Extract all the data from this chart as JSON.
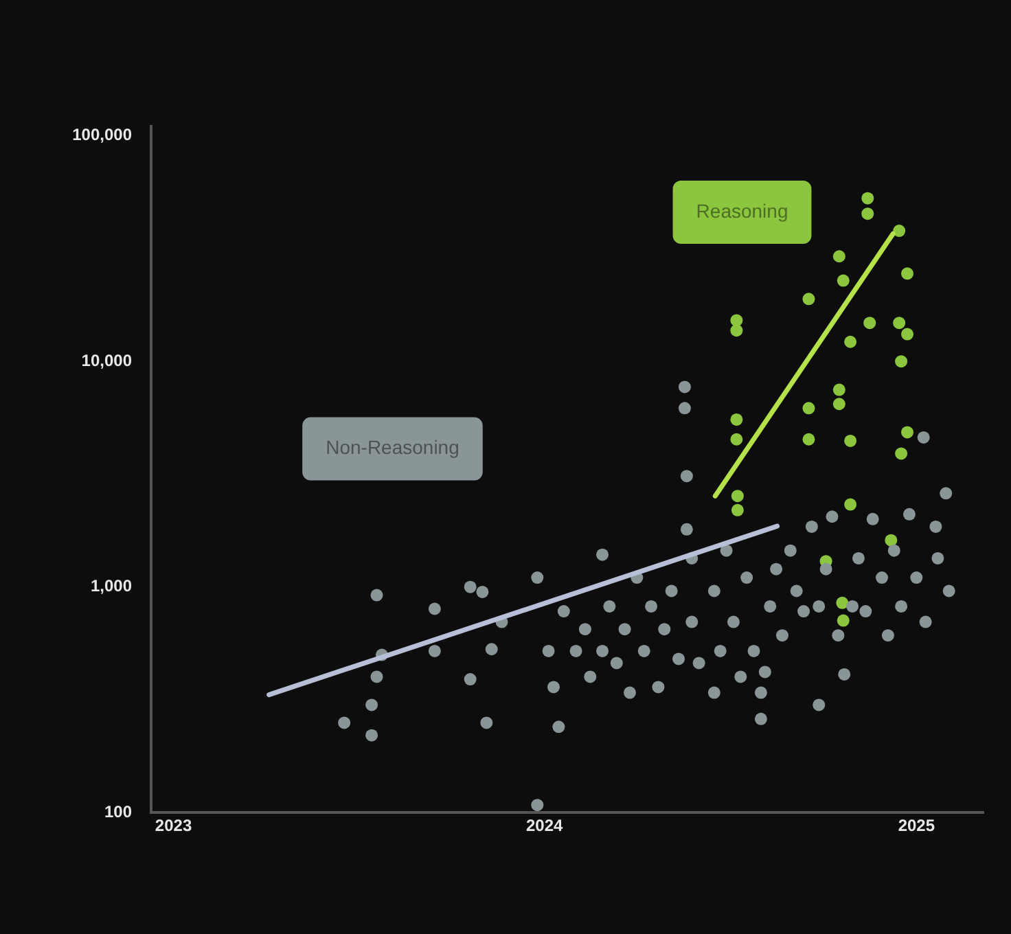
{
  "chart_data": {
    "type": "scatter",
    "log": "y",
    "grid": false,
    "legend": false,
    "marker": "circle",
    "xlim": [
      "2022-12-10",
      "2025-03-08"
    ],
    "xticks": [
      "2023",
      "2024",
      "2025"
    ],
    "ylim": [
      100,
      110000
    ],
    "yticks": [
      {
        "value": 100,
        "label": "100"
      },
      {
        "value": 1000,
        "label": "1,000"
      },
      {
        "value": 10000,
        "label": "10,000"
      },
      {
        "value": 100000,
        "label": "100,000"
      }
    ],
    "series": [
      {
        "name": "Non-Reasoning",
        "color": "#8a9598",
        "x": [
          "2023-06-18",
          "2023-07-15",
          "2023-07-15",
          "2023-07-20",
          "2023-07-20",
          "2023-07-25",
          "2023-09-15",
          "2023-09-15",
          "2023-10-20",
          "2023-11-01",
          "2023-10-20",
          "2023-11-05",
          "2023-11-10",
          "2023-11-20",
          "2023-12-25",
          "2023-12-25",
          "2024-01-05",
          "2024-01-10",
          "2024-01-15",
          "2024-01-20",
          "2024-02-01",
          "2024-02-10",
          "2024-02-15",
          "2024-02-27",
          "2024-02-27",
          "2024-03-05",
          "2024-03-12",
          "2024-03-20",
          "2024-03-25",
          "2024-04-01",
          "2024-04-08",
          "2024-04-15",
          "2024-04-22",
          "2024-04-28",
          "2024-05-05",
          "2024-05-12",
          "2024-05-18",
          "2024-05-18",
          "2024-05-20",
          "2024-05-20",
          "2024-05-25",
          "2024-05-25",
          "2024-06-01",
          "2024-06-16",
          "2024-06-22",
          "2024-06-28",
          "2024-07-05",
          "2024-07-12",
          "2024-07-18",
          "2024-07-25",
          "2024-08-01",
          "2024-08-05",
          "2024-08-10",
          "2024-08-16",
          "2024-08-22",
          "2024-08-30",
          "2024-09-05",
          "2024-09-12",
          "2024-09-20",
          "2024-09-27",
          "2024-10-04",
          "2024-10-10",
          "2024-10-16",
          "2024-10-22",
          "2024-10-30",
          "2024-11-05",
          "2024-11-12",
          "2024-11-19",
          "2024-11-28",
          "2024-12-04",
          "2024-12-10",
          "2024-12-17",
          "2024-12-25",
          "2025-01-01",
          "2025-01-08",
          "2025-01-10",
          "2025-01-20",
          "2025-01-22",
          "2025-01-30",
          "2025-02-02",
          "2024-09-27",
          "2024-08-01",
          "2024-06-16"
        ],
        "values": [
          250,
          300,
          220,
          920,
          400,
          500,
          800,
          520,
          1000,
          950,
          390,
          250,
          530,
          700,
          1100,
          108,
          520,
          360,
          240,
          780,
          520,
          650,
          400,
          1390,
          520,
          820,
          460,
          650,
          340,
          1100,
          520,
          820,
          360,
          650,
          960,
          480,
          7700,
          6200,
          3100,
          1800,
          1340,
          700,
          460,
          960,
          520,
          1450,
          700,
          400,
          1100,
          520,
          340,
          420,
          820,
          1200,
          610,
          1450,
          960,
          780,
          1850,
          820,
          1200,
          2050,
          610,
          410,
          820,
          1340,
          780,
          2000,
          1100,
          610,
          1450,
          820,
          2100,
          1100,
          4600,
          700,
          1850,
          1340,
          2600,
          960,
          300,
          260,
          340
        ]
      },
      {
        "name": "Reasoning",
        "color": "#8cc63f",
        "x": [
          "2024-07-08",
          "2024-07-08",
          "2024-07-08",
          "2024-07-08",
          "2024-07-09",
          "2024-07-09",
          "2024-11-14",
          "2024-11-14",
          "2024-12-15",
          "2024-10-17",
          "2024-12-23",
          "2024-09-17",
          "2024-10-21",
          "2024-11-16",
          "2024-10-28",
          "2024-12-15",
          "2024-12-23",
          "2024-12-17",
          "2024-10-17",
          "2024-10-17",
          "2024-09-17",
          "2024-12-23",
          "2024-12-17",
          "2024-09-17",
          "2024-10-28",
          "2024-10-28",
          "2024-12-07",
          "2024-10-04",
          "2024-10-20",
          "2024-10-21"
        ],
        "values": [
          15200,
          13700,
          5520,
          4510,
          2530,
          2190,
          52800,
          45100,
          37900,
          29200,
          24500,
          18900,
          22800,
          14800,
          12200,
          14800,
          13200,
          10000,
          7480,
          6470,
          6200,
          4850,
          3900,
          4510,
          4440,
          2320,
          1610,
          1300,
          850,
          710
        ]
      },
      {
        "type": "line",
        "marker": "none",
        "color": "#b8c0d8",
        "x": [
          "2023-04-05",
          "2024-08-17"
        ],
        "values": [
          333,
          1860
        ]
      },
      {
        "type": "line",
        "marker": "none",
        "color": "#b5e24a",
        "x": [
          "2024-06-17",
          "2024-12-09"
        ],
        "values": [
          2530,
          36800
        ]
      }
    ]
  }
}
